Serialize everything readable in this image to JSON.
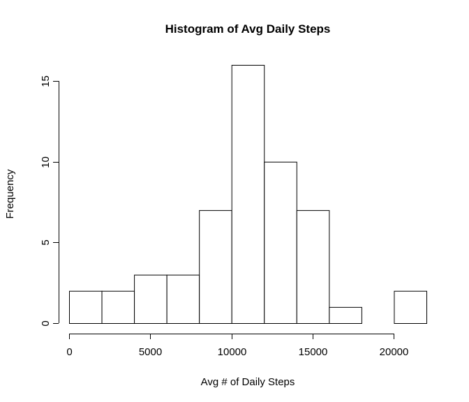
{
  "chart_data": {
    "type": "bar",
    "title": "Histogram of Avg Daily Steps",
    "xlabel": "Avg # of Daily Steps",
    "ylabel": "Frequency",
    "bins": [
      {
        "start": 0,
        "end": 2000,
        "count": 2
      },
      {
        "start": 2000,
        "end": 4000,
        "count": 2
      },
      {
        "start": 4000,
        "end": 6000,
        "count": 3
      },
      {
        "start": 6000,
        "end": 8000,
        "count": 3
      },
      {
        "start": 8000,
        "end": 10000,
        "count": 7
      },
      {
        "start": 10000,
        "end": 12000,
        "count": 16
      },
      {
        "start": 12000,
        "end": 14000,
        "count": 10
      },
      {
        "start": 14000,
        "end": 16000,
        "count": 7
      },
      {
        "start": 16000,
        "end": 18000,
        "count": 1
      },
      {
        "start": 18000,
        "end": 20000,
        "count": 0
      },
      {
        "start": 20000,
        "end": 22000,
        "count": 2
      }
    ],
    "xticks": [
      0,
      5000,
      10000,
      15000,
      20000
    ],
    "yticks": [
      0,
      5,
      10,
      15
    ],
    "xlim": [
      0,
      22000
    ],
    "ylim": [
      0,
      16
    ],
    "grid": false,
    "bar_fill": "#ffffff",
    "bar_stroke": "#000000"
  }
}
